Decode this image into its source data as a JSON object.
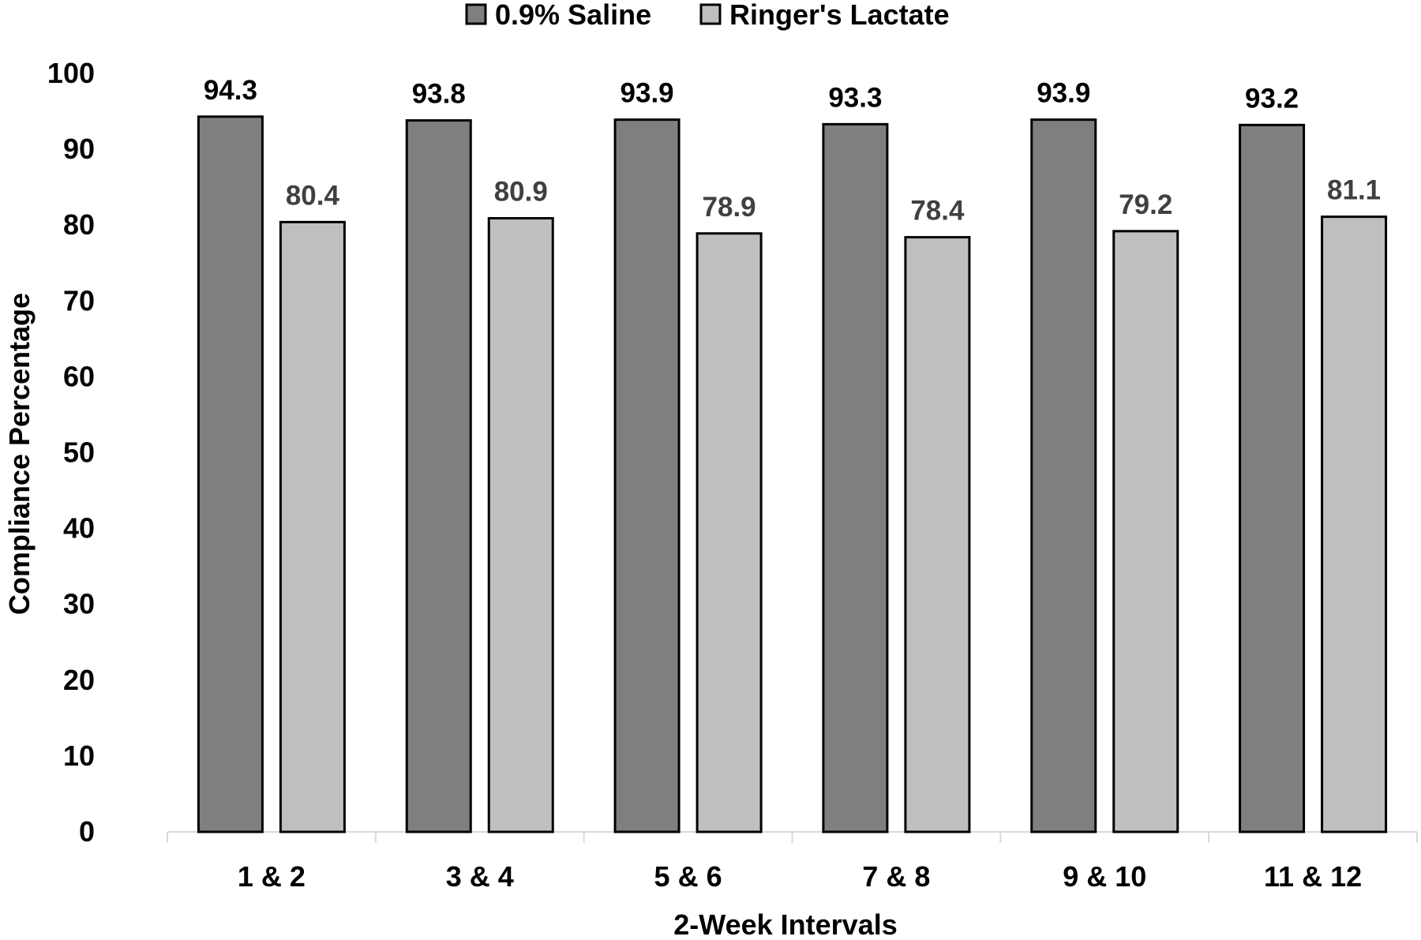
{
  "chart_data": {
    "type": "bar",
    "title": "",
    "xlabel": "2-Week Intervals",
    "ylabel": "Compliance Percentage",
    "ylim": [
      0,
      100
    ],
    "yticks": [
      0,
      10,
      20,
      30,
      40,
      50,
      60,
      70,
      80,
      90,
      100
    ],
    "grid": false,
    "legend_position": "top-center",
    "categories": [
      "1 & 2",
      "3 & 4",
      "5 & 6",
      "7 & 8",
      "9 & 10",
      "11 & 12"
    ],
    "series": [
      {
        "name": "0.9% Saline",
        "values": [
          94.3,
          93.8,
          93.9,
          93.3,
          93.9,
          93.2
        ],
        "color": "#7f7f7f",
        "label_color": "#000000"
      },
      {
        "name": "Ringer's Lactate",
        "values": [
          80.4,
          80.9,
          78.9,
          78.4,
          79.2,
          81.1
        ],
        "color": "#bfbfbf",
        "label_color": "#404040"
      }
    ]
  }
}
